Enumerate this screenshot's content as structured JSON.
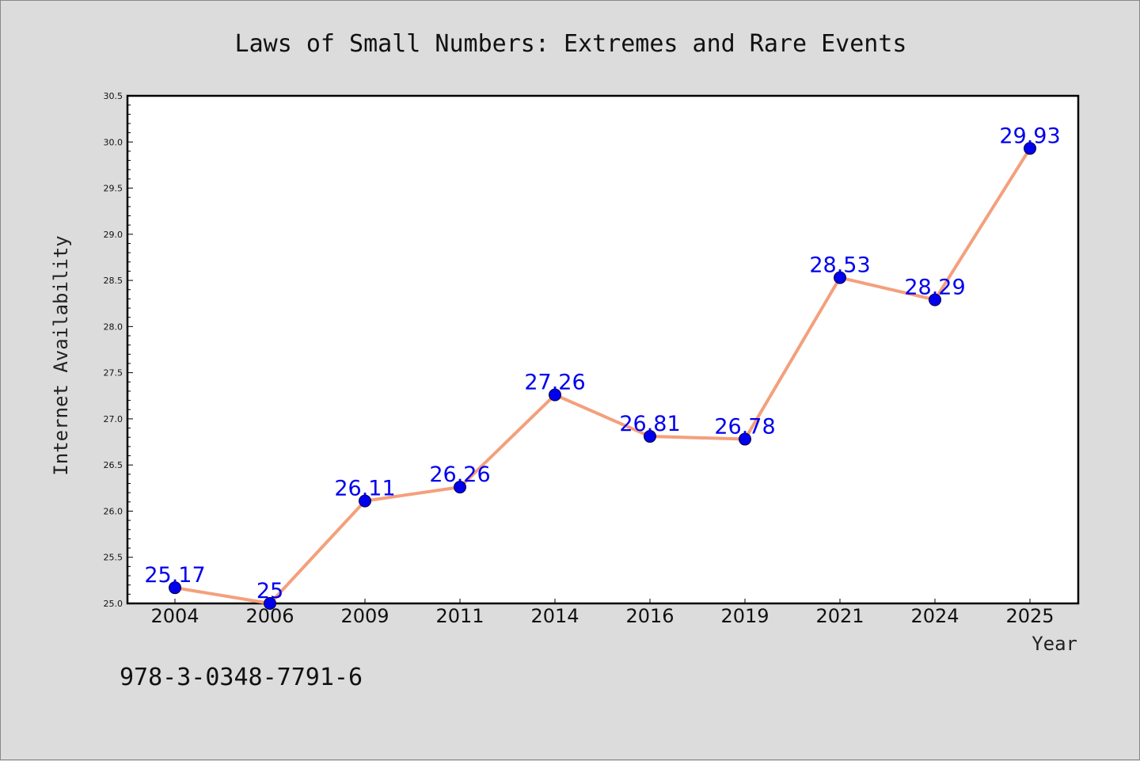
{
  "chart_data": {
    "type": "line",
    "title": "Laws of Small Numbers: Extremes and Rare Events",
    "xlabel": "Year",
    "ylabel": "Internet Availability",
    "categories": [
      "2004",
      "2006",
      "2009",
      "2011",
      "2014",
      "2016",
      "2019",
      "2021",
      "2024",
      "2025"
    ],
    "series": [
      {
        "values": [
          25.17,
          25,
          26.11,
          26.26,
          27.26,
          26.81,
          26.78,
          28.53,
          28.29,
          29.93
        ],
        "labels": [
          "25.17",
          "25",
          "26.11",
          "26.26",
          "27.26",
          "26.81",
          "26.78",
          "28.53",
          "28.29",
          "29.93"
        ],
        "line_color": "#f4a07c",
        "marker_color": "#0000ee"
      }
    ],
    "ylim": [
      25.0,
      30.5
    ],
    "yticks": [
      "25.0",
      "25.5",
      "26.0",
      "26.5",
      "27.0",
      "27.5",
      "28.0",
      "28.5",
      "29.0",
      "29.5",
      "30.0",
      "30.5"
    ],
    "grid": false,
    "legend": "none"
  },
  "footer": {
    "isbn": "978-3-0348-7791-6"
  }
}
